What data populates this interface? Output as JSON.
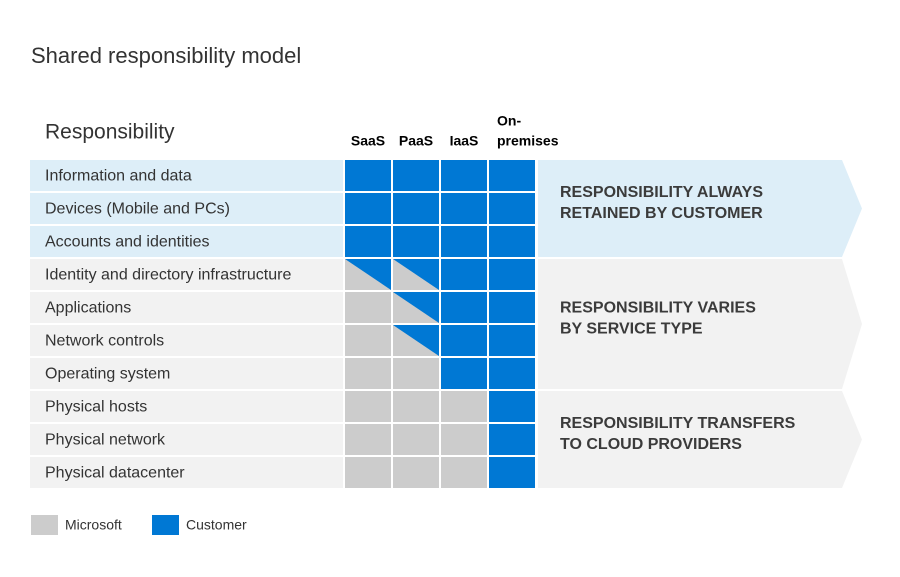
{
  "title": "Shared responsibility model",
  "table": {
    "header": "Responsibility",
    "columns": [
      [
        "SaaS"
      ],
      [
        "PaaS"
      ],
      [
        "IaaS"
      ],
      [
        "On-",
        "premises"
      ]
    ],
    "rows": [
      {
        "label": "Information and data",
        "cells": [
          "customer",
          "customer",
          "customer",
          "customer"
        ]
      },
      {
        "label": "Devices (Mobile and PCs)",
        "cells": [
          "customer",
          "customer",
          "customer",
          "customer"
        ]
      },
      {
        "label": "Accounts and identities",
        "cells": [
          "customer",
          "customer",
          "customer",
          "customer"
        ]
      },
      {
        "label": "Identity and directory infrastructure",
        "cells": [
          "shared",
          "shared",
          "customer",
          "customer"
        ]
      },
      {
        "label": "Applications",
        "cells": [
          "microsoft",
          "shared",
          "customer",
          "customer"
        ]
      },
      {
        "label": "Network controls",
        "cells": [
          "microsoft",
          "shared",
          "customer",
          "customer"
        ]
      },
      {
        "label": "Operating system",
        "cells": [
          "microsoft",
          "microsoft",
          "customer",
          "customer"
        ]
      },
      {
        "label": "Physical hosts",
        "cells": [
          "microsoft",
          "microsoft",
          "microsoft",
          "customer"
        ]
      },
      {
        "label": "Physical network",
        "cells": [
          "microsoft",
          "microsoft",
          "microsoft",
          "customer"
        ]
      },
      {
        "label": "Physical datacenter",
        "cells": [
          "microsoft",
          "microsoft",
          "microsoft",
          "customer"
        ]
      }
    ]
  },
  "groups": [
    {
      "lines": [
        "RESPONSIBILITY ALWAYS",
        "RETAINED BY CUSTOMER"
      ],
      "rows": [
        0,
        2
      ],
      "color": "#ddeef8"
    },
    {
      "lines": [
        "RESPONSIBILITY VARIES",
        "BY SERVICE TYPE"
      ],
      "rows": [
        3,
        6
      ],
      "color": "#f2f2f2"
    },
    {
      "lines": [
        "RESPONSIBILITY TRANSFERS",
        "TO CLOUD PROVIDERS"
      ],
      "rows": [
        7,
        9
      ],
      "color": "#f2f2f2"
    }
  ],
  "legend": [
    {
      "label": "Microsoft",
      "key": "microsoft",
      "color": "#cccccc"
    },
    {
      "label": "Customer",
      "key": "customer",
      "color": "#0078d4"
    }
  ]
}
